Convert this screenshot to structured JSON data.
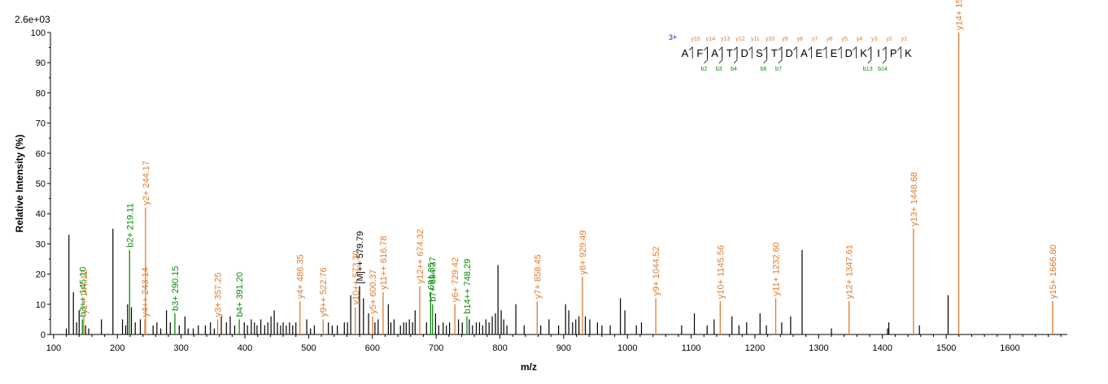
{
  "colors": {
    "y_ion": "#e07b2c",
    "b_ion": "#0a8a0a",
    "other": "#000000",
    "axis": "#000000",
    "charge": "#1a1ab0"
  },
  "scale_label": "2.6e+03",
  "chart_data": {
    "type": "bar",
    "title": "",
    "xlabel": "m/z",
    "ylabel": "Relative   Intensity (%)",
    "xlim": [
      95,
      1690
    ],
    "ylim": [
      0,
      100
    ],
    "xticks": [
      "100",
      "200",
      "300",
      "400",
      "500",
      "600",
      "700",
      "800",
      "900",
      "1000",
      "1100",
      "1200",
      "1300",
      "1400",
      "1500",
      "1600"
    ],
    "yticks": [
      "0",
      "10",
      "20",
      "30",
      "40",
      "50",
      "60",
      "70",
      "80",
      "90",
      "100"
    ],
    "sequence": {
      "charge": "3+",
      "residues": [
        "A",
        "F",
        "A",
        "T",
        "D",
        "S",
        "T",
        "D",
        "A",
        "E",
        "E",
        "D",
        "K",
        "I",
        "P",
        "K"
      ],
      "y_ions": [
        "y15",
        "y14",
        "y13",
        "y12",
        "y11",
        "y10",
        "y9",
        "y8",
        "y7",
        "y6",
        "y5",
        "y4",
        "y3",
        "y2",
        "y1"
      ],
      "b_ions": [
        {
          "after": 2,
          "label": "b2"
        },
        {
          "after": 3,
          "label": "b3"
        },
        {
          "after": 4,
          "label": "b4"
        },
        {
          "after": 6,
          "label": "b6"
        },
        {
          "after": 7,
          "label": "b7"
        },
        {
          "after": 13,
          "label": "b13"
        },
        {
          "after": 14,
          "label": "b14"
        }
      ]
    },
    "labeled_peaks": [
      {
        "mz": 147.12,
        "intensity": 6,
        "type": "y",
        "label": "y1+ 147.12"
      },
      {
        "mz": 145.1,
        "intensity": 5,
        "type": "b",
        "label": "b3++ 145.10"
      },
      {
        "mz": 219.11,
        "intensity": 28,
        "type": "b",
        "label": "b2+ 219.11"
      },
      {
        "mz": 244.17,
        "intensity": 42,
        "type": "y",
        "label": "y2+ 244.17"
      },
      {
        "mz": 243.14,
        "intensity": 5,
        "type": "y",
        "label": "y4++ 243.14"
      },
      {
        "mz": 290.15,
        "intensity": 7,
        "type": "b",
        "label": "b3+ 290.15"
      },
      {
        "mz": 357.25,
        "intensity": 5,
        "type": "y",
        "label": "y3+ 357.25"
      },
      {
        "mz": 391.2,
        "intensity": 5,
        "type": "b",
        "label": "b4+ 391.20"
      },
      {
        "mz": 486.35,
        "intensity": 11,
        "type": "y",
        "label": "y4+ 486.35"
      },
      {
        "mz": 522.76,
        "intensity": 5,
        "type": "y",
        "label": "y9++ 522.76"
      },
      {
        "mz": 579.79,
        "intensity": 16,
        "type": "other",
        "label": "[M]++ 579.79"
      },
      {
        "mz": 573.3,
        "intensity": 9,
        "type": "y",
        "label": "y10++ 573.30"
      },
      {
        "mz": 600.37,
        "intensity": 6,
        "type": "y",
        "label": "y5+ 600.37"
      },
      {
        "mz": 616.78,
        "intensity": 14,
        "type": "y",
        "label": "y11++ 616.78"
      },
      {
        "mz": 674.32,
        "intensity": 16,
        "type": "y",
        "label": "y12++ 674.32"
      },
      {
        "mz": 694.37,
        "intensity": 10,
        "type": "b",
        "label": "b7+ 694.37"
      },
      {
        "mz": 691.35,
        "intensity": 14,
        "type": "b",
        "label": "691.35"
      },
      {
        "mz": 729.42,
        "intensity": 10,
        "type": "y",
        "label": "y6+ 729.42"
      },
      {
        "mz": 748.29,
        "intensity": 6,
        "type": "b",
        "label": "b14++ 748.29"
      },
      {
        "mz": 858.45,
        "intensity": 11,
        "type": "y",
        "label": "y7+ 858.45"
      },
      {
        "mz": 929.49,
        "intensity": 19,
        "type": "y",
        "label": "y8+ 929.49"
      },
      {
        "mz": 1044.52,
        "intensity": 12,
        "type": "y",
        "label": "y9+ 1044.52"
      },
      {
        "mz": 1145.56,
        "intensity": 11,
        "type": "y",
        "label": "y10+ 1145.56"
      },
      {
        "mz": 1232.6,
        "intensity": 12,
        "type": "y",
        "label": "y11+ 1232.60"
      },
      {
        "mz": 1347.61,
        "intensity": 11,
        "type": "y",
        "label": "y12+ 1347.61"
      },
      {
        "mz": 1448.68,
        "intensity": 35,
        "type": "y",
        "label": "y13+ 1448.68"
      },
      {
        "mz": 1519.71,
        "intensity": 100,
        "type": "y",
        "label": "y14+ 1519.71"
      },
      {
        "mz": 1666.8,
        "intensity": 11,
        "type": "y",
        "label": "y15+ 1666.80"
      }
    ],
    "unlabeled_peaks": [
      [
        120,
        2
      ],
      [
        124,
        33
      ],
      [
        131,
        14
      ],
      [
        136,
        4
      ],
      [
        140,
        8
      ],
      [
        150,
        3
      ],
      [
        155,
        2
      ],
      [
        175,
        5
      ],
      [
        193,
        35
      ],
      [
        208,
        5
      ],
      [
        213,
        3
      ],
      [
        216,
        10
      ],
      [
        222,
        9
      ],
      [
        228,
        4
      ],
      [
        236,
        5
      ],
      [
        256,
        3
      ],
      [
        262,
        4
      ],
      [
        268,
        2
      ],
      [
        277,
        8
      ],
      [
        283,
        4
      ],
      [
        297,
        3
      ],
      [
        306,
        6
      ],
      [
        311,
        2
      ],
      [
        319,
        2
      ],
      [
        327,
        3
      ],
      [
        338,
        3
      ],
      [
        346,
        4
      ],
      [
        352,
        2
      ],
      [
        363,
        6
      ],
      [
        371,
        4
      ],
      [
        377,
        6
      ],
      [
        384,
        3
      ],
      [
        399,
        4
      ],
      [
        404,
        3
      ],
      [
        410,
        5
      ],
      [
        415,
        4
      ],
      [
        419,
        3
      ],
      [
        425,
        5
      ],
      [
        431,
        3
      ],
      [
        436,
        4
      ],
      [
        441,
        6
      ],
      [
        446,
        8
      ],
      [
        451,
        4
      ],
      [
        456,
        3
      ],
      [
        460,
        4
      ],
      [
        465,
        3
      ],
      [
        470,
        4
      ],
      [
        475,
        3
      ],
      [
        480,
        4
      ],
      [
        497,
        5
      ],
      [
        503,
        2
      ],
      [
        509,
        3
      ],
      [
        531,
        4
      ],
      [
        537,
        3
      ],
      [
        545,
        3
      ],
      [
        556,
        4
      ],
      [
        561,
        4
      ],
      [
        566,
        13
      ],
      [
        586,
        12
      ],
      [
        594,
        7
      ],
      [
        604,
        4
      ],
      [
        609,
        5
      ],
      [
        625,
        10
      ],
      [
        629,
        4
      ],
      [
        634,
        5
      ],
      [
        644,
        3
      ],
      [
        649,
        4
      ],
      [
        653,
        4
      ],
      [
        658,
        5
      ],
      [
        663,
        4
      ],
      [
        667,
        8
      ],
      [
        685,
        4
      ],
      [
        699,
        7
      ],
      [
        704,
        3
      ],
      [
        711,
        4
      ],
      [
        716,
        3
      ],
      [
        721,
        4
      ],
      [
        735,
        5
      ],
      [
        741,
        4
      ],
      [
        752,
        5
      ],
      [
        757,
        3
      ],
      [
        763,
        4
      ],
      [
        768,
        4
      ],
      [
        773,
        3
      ],
      [
        778,
        5
      ],
      [
        783,
        4
      ],
      [
        788,
        6
      ],
      [
        793,
        7
      ],
      [
        797,
        23
      ],
      [
        802,
        8
      ],
      [
        806,
        5
      ],
      [
        811,
        3
      ],
      [
        825,
        10
      ],
      [
        838,
        3
      ],
      [
        864,
        3
      ],
      [
        877,
        5
      ],
      [
        892,
        3
      ],
      [
        903,
        10
      ],
      [
        908,
        8
      ],
      [
        914,
        4
      ],
      [
        919,
        5
      ],
      [
        924,
        6
      ],
      [
        934,
        6
      ],
      [
        941,
        5
      ],
      [
        953,
        4
      ],
      [
        960,
        3
      ],
      [
        973,
        3
      ],
      [
        989,
        12
      ],
      [
        996,
        8
      ],
      [
        1014,
        3
      ],
      [
        1022,
        4
      ],
      [
        1085,
        3
      ],
      [
        1105,
        7
      ],
      [
        1125,
        3
      ],
      [
        1136,
        5
      ],
      [
        1164,
        6
      ],
      [
        1175,
        3
      ],
      [
        1187,
        4
      ],
      [
        1208,
        7
      ],
      [
        1218,
        3
      ],
      [
        1242,
        4
      ],
      [
        1256,
        6
      ],
      [
        1274,
        28
      ],
      [
        1320,
        2
      ],
      [
        1408,
        2
      ],
      [
        1410,
        4
      ],
      [
        1458,
        3
      ],
      [
        1503,
        13
      ]
    ]
  }
}
